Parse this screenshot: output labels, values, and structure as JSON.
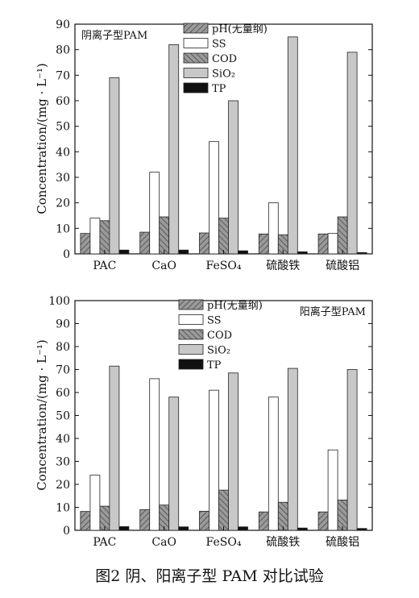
{
  "caption": "图2    阴、阳离子型 PAM 对比试验",
  "colors": {
    "pH": "#8f8f8f",
    "SS": "#ffffff",
    "COD": "#8f8f8f",
    "SiO2": "#c8c8c8",
    "TP": "#111111",
    "axis": "#111111"
  },
  "chart_data": [
    {
      "type": "bar",
      "panel_label": "阴离子型PAM",
      "panel_label_position": "top-left",
      "legend_position": "top-center",
      "ylabel": "Concentration/(mg · L⁻¹)",
      "ylim": [
        0,
        90
      ],
      "yticks": [
        0,
        10,
        20,
        30,
        40,
        50,
        60,
        70,
        80,
        90
      ],
      "categories": [
        "PAC",
        "CaO",
        "FeSO₄",
        "硫酸铁",
        "硫酸铝"
      ],
      "series": [
        {
          "name": "pH(无量纲)",
          "key": "pH",
          "pattern": "hatch-forward",
          "values": [
            8,
            8.5,
            8.2,
            7.8,
            7.8
          ]
        },
        {
          "name": "SS",
          "key": "SS",
          "pattern": "solid",
          "values": [
            14,
            32,
            44,
            20,
            8
          ]
        },
        {
          "name": "COD",
          "key": "COD",
          "pattern": "hatch-back",
          "values": [
            13,
            14.5,
            14,
            7.5,
            14.5
          ]
        },
        {
          "name": "SiO₂",
          "key": "SiO2",
          "pattern": "solid",
          "values": [
            69,
            82,
            60,
            85,
            79
          ]
        },
        {
          "name": "TP",
          "key": "TP",
          "pattern": "solid",
          "values": [
            1.5,
            1.5,
            1.2,
            0.8,
            0.5
          ]
        }
      ]
    },
    {
      "type": "bar",
      "panel_label": "阳离子型PAM",
      "panel_label_position": "top-right",
      "legend_position": "top-center",
      "ylabel": "Concentration/(mg · L⁻¹)",
      "ylim": [
        0,
        100
      ],
      "yticks": [
        0,
        10,
        20,
        30,
        40,
        50,
        60,
        70,
        80,
        90,
        100
      ],
      "categories": [
        "PAC",
        "CaO",
        "FeSO₄",
        "硫酸铁",
        "硫酸铝"
      ],
      "series": [
        {
          "name": "pH(无量纲)",
          "key": "pH",
          "pattern": "hatch-forward",
          "values": [
            8.2,
            9,
            8.3,
            8,
            8
          ]
        },
        {
          "name": "SS",
          "key": "SS",
          "pattern": "solid",
          "values": [
            24,
            66,
            61,
            58,
            35
          ]
        },
        {
          "name": "COD",
          "key": "COD",
          "pattern": "hatch-back",
          "values": [
            10.5,
            11,
            17.5,
            12.2,
            13.2
          ]
        },
        {
          "name": "SiO₂",
          "key": "SiO2",
          "pattern": "solid",
          "values": [
            71.5,
            58,
            68.5,
            70.5,
            70
          ]
        },
        {
          "name": "TP",
          "key": "TP",
          "pattern": "solid",
          "values": [
            1.6,
            1.5,
            1.5,
            1,
            0.8
          ]
        }
      ]
    }
  ]
}
